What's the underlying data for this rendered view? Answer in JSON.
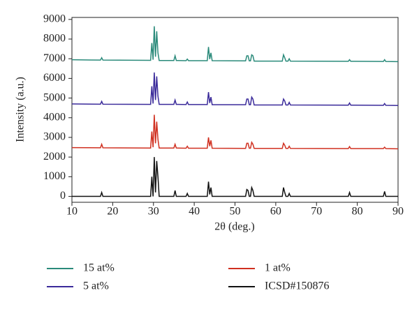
{
  "chart_data": {
    "type": "line",
    "xlabel": "2θ (deg.)",
    "ylabel": "Intensity (a.u.)",
    "x": [
      10,
      17,
      17.3,
      17.6,
      29.3,
      29.6,
      29.9,
      30.2,
      30.5,
      30.8,
      31.1,
      31.4,
      35,
      35.3,
      35.6,
      38,
      38.3,
      38.6,
      43.2,
      43.5,
      43.8,
      44.1,
      44.4,
      52.6,
      52.9,
      53.2,
      53.5,
      53.8,
      54.1,
      54.4,
      54.7,
      61.6,
      61.9,
      62.2,
      62.5,
      63.0,
      63.3,
      63.6,
      77.8,
      78.1,
      78.4,
      86.4,
      86.7,
      87.0,
      90
    ],
    "series": [
      {
        "name": "15 at%",
        "color": "#2a8a7a",
        "values": [
          6950,
          6930,
          7050,
          6930,
          6920,
          7800,
          6950,
          8650,
          7100,
          8400,
          7300,
          6910,
          6910,
          7150,
          6910,
          6900,
          6980,
          6900,
          6900,
          7600,
          6980,
          7300,
          6900,
          6890,
          7150,
          7150,
          6890,
          6890,
          7200,
          7150,
          6880,
          6880,
          7200,
          7050,
          6880,
          6880,
          7000,
          6880,
          6870,
          6950,
          6870,
          6860,
          6950,
          6860,
          6850
        ]
      },
      {
        "name": "1 at%",
        "color": "#d03020",
        "values": [
          2480,
          2470,
          2650,
          2470,
          2460,
          3300,
          2500,
          4150,
          2700,
          3800,
          2900,
          2460,
          2460,
          2650,
          2460,
          2450,
          2550,
          2450,
          2450,
          3000,
          2550,
          2850,
          2450,
          2440,
          2700,
          2700,
          2450,
          2450,
          2750,
          2650,
          2440,
          2440,
          2700,
          2600,
          2440,
          2440,
          2550,
          2440,
          2430,
          2530,
          2430,
          2430,
          2500,
          2430,
          2420
        ]
      },
      {
        "name": "5 at%",
        "color": "#3a2a9a",
        "values": [
          4700,
          4690,
          4830,
          4690,
          4680,
          5600,
          4720,
          6300,
          4900,
          6100,
          5100,
          4680,
          4680,
          4900,
          4680,
          4670,
          4800,
          4670,
          4670,
          5300,
          4750,
          5050,
          4660,
          4660,
          4950,
          4950,
          4660,
          4660,
          5050,
          4950,
          4650,
          4650,
          4950,
          4850,
          4650,
          4650,
          4780,
          4650,
          4640,
          4750,
          4640,
          4630,
          4720,
          4630,
          4620
        ]
      },
      {
        "name": "ICSD#150876",
        "color": "#111111",
        "values": [
          0,
          0,
          200,
          0,
          0,
          1000,
          0,
          2000,
          200,
          1800,
          1000,
          0,
          0,
          300,
          0,
          0,
          150,
          0,
          0,
          750,
          100,
          450,
          0,
          0,
          350,
          300,
          0,
          0,
          450,
          300,
          0,
          0,
          450,
          200,
          0,
          0,
          150,
          0,
          0,
          200,
          0,
          0,
          250,
          0,
          0
        ]
      }
    ],
    "xlim": [
      10,
      90
    ],
    "xticks": [
      10,
      20,
      30,
      40,
      50,
      60,
      70,
      80,
      90
    ],
    "ylim": [
      -300,
      9100
    ],
    "yticks": [
      0,
      1000,
      2000,
      3000,
      4000,
      5000,
      6000,
      7000,
      8000,
      9000
    ]
  }
}
